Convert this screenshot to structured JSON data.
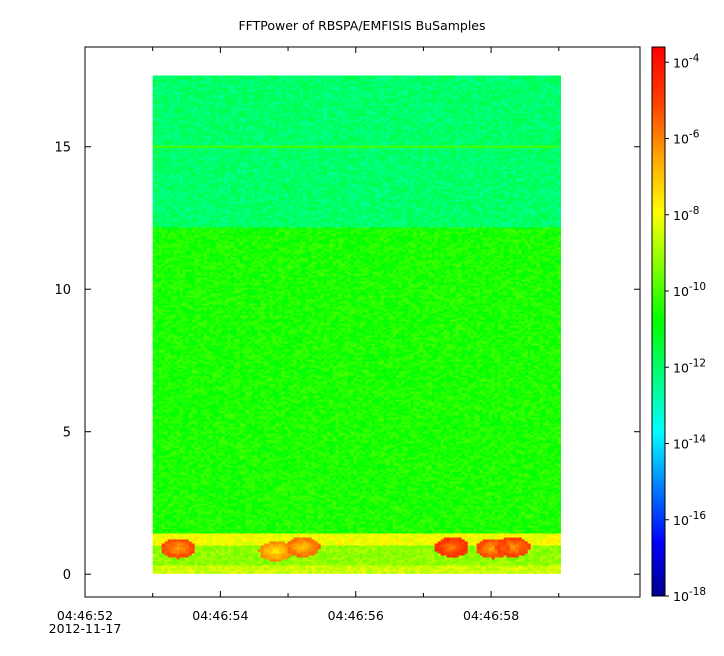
{
  "chart_data": {
    "type": "heatmap",
    "title": "FFTPower of RBSPA/EMFISIS  BuSamples",
    "xlabel": "",
    "ylabel": "",
    "x_ticks": [
      {
        "value": 52,
        "label": "04:46:52",
        "sublabel": "2012-11-17"
      },
      {
        "value": 53,
        "label": ""
      },
      {
        "value": 54,
        "label": "04:46:54"
      },
      {
        "value": 55,
        "label": ""
      },
      {
        "value": 56,
        "label": "04:46:56"
      },
      {
        "value": 57,
        "label": ""
      },
      {
        "value": 58,
        "label": "04:46:58"
      },
      {
        "value": 59,
        "label": ""
      }
    ],
    "xlim_seconds": [
      52.0,
      60.2
    ],
    "ylim": [
      -0.8,
      18.5
    ],
    "y_ticks": [
      0,
      5,
      10,
      15
    ],
    "data_extent": {
      "x_start": 53.0,
      "x_end": 59.0,
      "y_start": 0.0,
      "y_end": 17.5
    },
    "colorbar": {
      "scale": "log",
      "range_exponents": [
        -18,
        -3.6
      ],
      "tick_exponents": [
        -4,
        -6,
        -8,
        -10,
        -12,
        -14,
        -16,
        -18
      ],
      "tick_base": "10",
      "colors": [
        "#00008b",
        "#0000ff",
        "#0080ff",
        "#00ffff",
        "#00ff80",
        "#00ff00",
        "#80ff00",
        "#ffff00",
        "#ffa500",
        "#ff4000",
        "#ff0000"
      ]
    },
    "bands": [
      {
        "y_from": 0.0,
        "y_to": 0.3,
        "log_power": -8.5,
        "desc": "yellow"
      },
      {
        "y_from": 0.3,
        "y_to": 1.0,
        "log_power": -9.2,
        "desc": "yellow-green"
      },
      {
        "y_from": 1.0,
        "y_to": 1.4,
        "log_power": -8.0,
        "desc": "yellow-orange"
      },
      {
        "y_from": 1.4,
        "y_to": 12.2,
        "log_power": -10.5,
        "desc": "green"
      },
      {
        "y_from": 12.2,
        "y_to": 17.5,
        "log_power": -12.0,
        "desc": "spring green"
      }
    ],
    "line_features": [
      {
        "y": 15.0,
        "log_power": -10.0
      }
    ],
    "hot_spots": [
      {
        "x": 53.35,
        "y": 0.9,
        "log_power": -6.5
      },
      {
        "x": 54.8,
        "y": 0.8,
        "log_power": -7.5
      },
      {
        "x": 55.2,
        "y": 0.95,
        "log_power": -7.0
      },
      {
        "x": 57.4,
        "y": 0.95,
        "log_power": -6.0
      },
      {
        "x": 58.0,
        "y": 0.9,
        "log_power": -6.5
      },
      {
        "x": 58.3,
        "y": 0.95,
        "log_power": -6.3
      }
    ]
  }
}
